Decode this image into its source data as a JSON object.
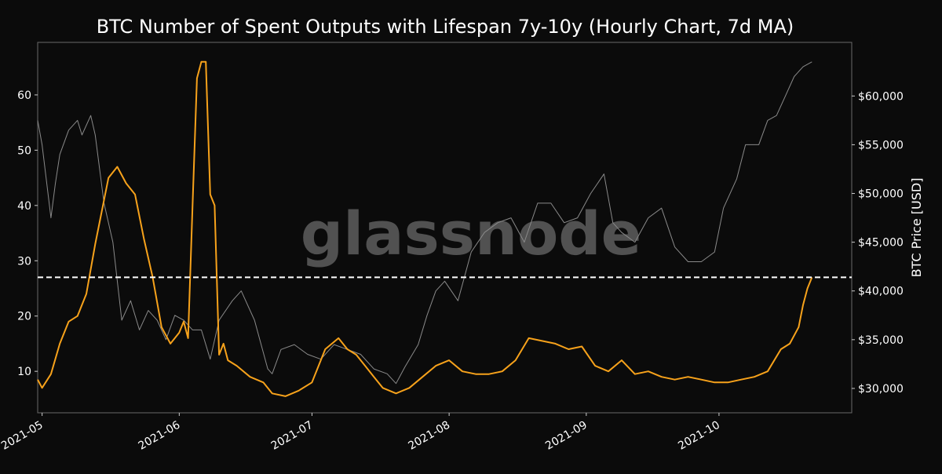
{
  "chart_data": {
    "type": "line",
    "title": "BTC Number of Spent Outputs with Lifespan 7y-10y (Hourly Chart, 7d MA)",
    "watermark": "glassnode",
    "xlabel": "",
    "ylabel_left": "",
    "ylabel_right": "BTC Price [USD]",
    "x_ticks": [
      "2021-05",
      "2021-06",
      "2021-07",
      "2021-08",
      "2021-09",
      "2021-10"
    ],
    "x_tick_dates": [
      "2021-05-01",
      "2021-06-01",
      "2021-07-01",
      "2021-08-01",
      "2021-09-01",
      "2021-10-01"
    ],
    "xlim": [
      "2021-04-30",
      "2021-10-31"
    ],
    "y_left_ticks": [
      "10",
      "20",
      "30",
      "40",
      "50",
      "60"
    ],
    "y_left_tick_values": [
      10,
      20,
      30,
      40,
      50,
      60
    ],
    "ylim_left": [
      2.5,
      69.5
    ],
    "y_right_ticks": [
      "$30,000",
      "$35,000",
      "$40,000",
      "$45,000",
      "$50,000",
      "$55,000",
      "$60,000"
    ],
    "y_right_tick_values": [
      30000,
      35000,
      40000,
      45000,
      50000,
      55000,
      60000
    ],
    "ylim_right": [
      27500,
      65500
    ],
    "reference_line": {
      "axis": "left",
      "value": 27,
      "style": "dashed"
    },
    "grid": false,
    "series": [
      {
        "axis": "left",
        "color": "#f7a21b",
        "x": [
          "2021-04-30",
          "2021-05-01",
          "2021-05-03",
          "2021-05-05",
          "2021-05-07",
          "2021-05-09",
          "2021-05-11",
          "2021-05-13",
          "2021-05-14",
          "2021-05-16",
          "2021-05-18",
          "2021-05-20",
          "2021-05-22",
          "2021-05-24",
          "2021-05-26",
          "2021-05-28",
          "2021-05-30",
          "2021-06-01",
          "2021-06-02",
          "2021-06-03",
          "2021-06-04",
          "2021-06-05",
          "2021-06-06",
          "2021-06-07",
          "2021-06-08",
          "2021-06-09",
          "2021-06-10",
          "2021-06-11",
          "2021-06-12",
          "2021-06-14",
          "2021-06-17",
          "2021-06-20",
          "2021-06-22",
          "2021-06-25",
          "2021-06-28",
          "2021-07-01",
          "2021-07-04",
          "2021-07-07",
          "2021-07-09",
          "2021-07-11",
          "2021-07-13",
          "2021-07-15",
          "2021-07-17",
          "2021-07-20",
          "2021-07-23",
          "2021-07-26",
          "2021-07-29",
          "2021-08-01",
          "2021-08-04",
          "2021-08-07",
          "2021-08-10",
          "2021-08-13",
          "2021-08-16",
          "2021-08-19",
          "2021-08-22",
          "2021-08-25",
          "2021-08-28",
          "2021-08-31",
          "2021-09-03",
          "2021-09-06",
          "2021-09-09",
          "2021-09-12",
          "2021-09-15",
          "2021-09-18",
          "2021-09-21",
          "2021-09-24",
          "2021-09-27",
          "2021-09-30",
          "2021-10-03",
          "2021-10-06",
          "2021-10-09",
          "2021-10-12",
          "2021-10-15",
          "2021-10-17",
          "2021-10-19",
          "2021-10-20",
          "2021-10-21",
          "2021-10-22"
        ],
        "y": [
          8.5,
          7,
          9.5,
          15,
          19,
          20,
          24,
          33,
          37,
          45,
          47,
          44,
          42,
          34,
          27,
          18,
          15,
          17,
          19,
          16,
          40,
          63,
          66,
          66,
          42,
          40,
          13,
          15,
          12,
          11,
          9,
          8,
          6,
          5.5,
          6.5,
          8,
          14,
          16,
          14,
          13,
          11,
          9,
          7,
          6,
          7,
          9,
          11,
          12,
          10,
          9.5,
          9.5,
          10,
          12,
          16,
          15.5,
          15,
          14,
          14.5,
          11,
          10,
          12,
          9.5,
          10,
          9,
          8.5,
          9,
          8.5,
          8,
          8,
          8.5,
          9,
          10,
          14,
          15,
          18,
          22,
          25,
          27
        ]
      },
      {
        "axis": "right",
        "color": "#8a8a8a",
        "x": [
          "2021-04-30",
          "2021-05-01",
          "2021-05-03",
          "2021-05-04",
          "2021-05-05",
          "2021-05-07",
          "2021-05-09",
          "2021-05-10",
          "2021-05-12",
          "2021-05-13",
          "2021-05-15",
          "2021-05-17",
          "2021-05-19",
          "2021-05-21",
          "2021-05-23",
          "2021-05-25",
          "2021-05-27",
          "2021-05-29",
          "2021-05-31",
          "2021-06-02",
          "2021-06-04",
          "2021-06-06",
          "2021-06-08",
          "2021-06-10",
          "2021-06-13",
          "2021-06-15",
          "2021-06-18",
          "2021-06-21",
          "2021-06-22",
          "2021-06-24",
          "2021-06-27",
          "2021-06-30",
          "2021-07-03",
          "2021-07-06",
          "2021-07-09",
          "2021-07-12",
          "2021-07-15",
          "2021-07-18",
          "2021-07-20",
          "2021-07-22",
          "2021-07-25",
          "2021-07-27",
          "2021-07-29",
          "2021-07-31",
          "2021-08-03",
          "2021-08-06",
          "2021-08-09",
          "2021-08-12",
          "2021-08-15",
          "2021-08-18",
          "2021-08-21",
          "2021-08-24",
          "2021-08-27",
          "2021-08-30",
          "2021-09-02",
          "2021-09-05",
          "2021-09-07",
          "2021-09-09",
          "2021-09-12",
          "2021-09-15",
          "2021-09-18",
          "2021-09-21",
          "2021-09-24",
          "2021-09-27",
          "2021-09-30",
          "2021-10-02",
          "2021-10-05",
          "2021-10-07",
          "2021-10-10",
          "2021-10-12",
          "2021-10-14",
          "2021-10-16",
          "2021-10-18",
          "2021-10-20",
          "2021-10-22"
        ],
        "y": [
          57500,
          55000,
          47500,
          51000,
          54000,
          56500,
          57500,
          56000,
          58000,
          56000,
          49000,
          45000,
          37000,
          39000,
          36000,
          38000,
          37000,
          35000,
          37500,
          37000,
          36000,
          36000,
          33000,
          37000,
          39000,
          40000,
          37000,
          32000,
          31500,
          34000,
          34500,
          33500,
          33000,
          34500,
          34000,
          33500,
          32000,
          31500,
          30500,
          32200,
          34500,
          37500,
          40000,
          41000,
          39000,
          44000,
          46000,
          47000,
          47500,
          45000,
          49000,
          49000,
          47000,
          47500,
          50000,
          52000,
          47000,
          46000,
          45000,
          47500,
          48500,
          44500,
          43000,
          43000,
          44000,
          48500,
          51500,
          55000,
          55000,
          57500,
          58000,
          60000,
          62000,
          63000,
          63500
        ]
      }
    ]
  }
}
